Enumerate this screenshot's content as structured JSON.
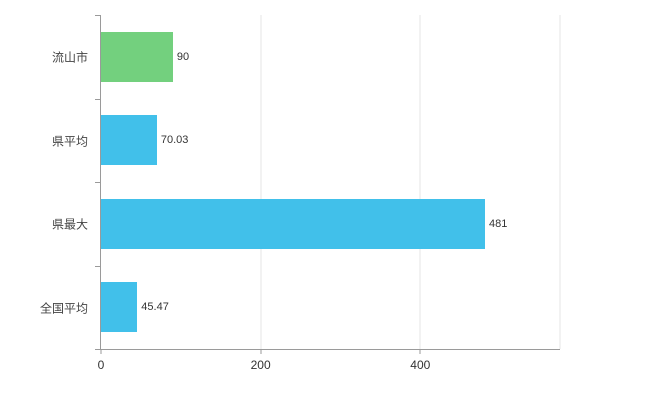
{
  "chart_data": {
    "type": "bar",
    "orientation": "horizontal",
    "title": "",
    "xlabel": "",
    "ylabel": "",
    "categories": [
      "流山市",
      "県平均",
      "県最大",
      "全国平均"
    ],
    "values": [
      90,
      70.03,
      481,
      45.47
    ],
    "value_labels": [
      "90",
      "70.03",
      "481",
      "45.47"
    ],
    "bar_colors": [
      "#73d07e",
      "#41c0ea",
      "#41c0ea",
      "#41c0ea"
    ],
    "xlim": [
      0,
      575
    ],
    "x_ticks": [
      0,
      200,
      400
    ],
    "x_tick_labels": [
      "0",
      "200",
      "400"
    ],
    "grid": true,
    "legend": "none",
    "background": "#ffffff",
    "axis_color": "#9a9a9a",
    "gridline_color": "#e6e6e6",
    "label_color": "#333333"
  }
}
